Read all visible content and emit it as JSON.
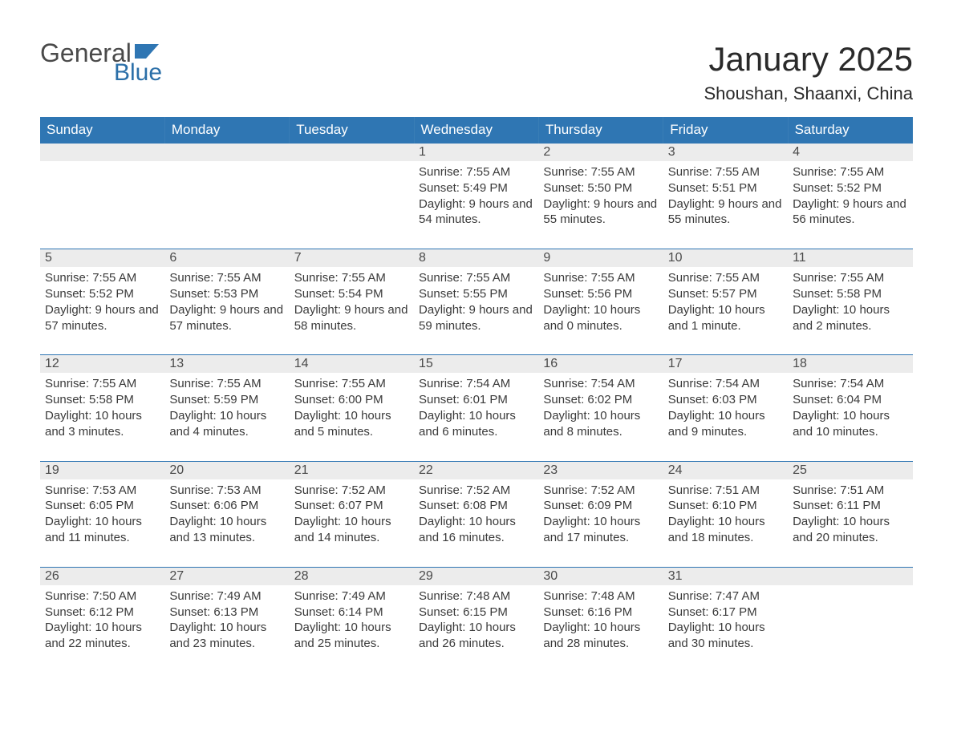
{
  "logo": {
    "line1": "General",
    "line2": "Blue",
    "icon_color": "#2f76b3"
  },
  "title": "January 2025",
  "location": "Shoushan, Shaanxi, China",
  "colors": {
    "header_bg": "#2f76b3",
    "header_text": "#ffffff",
    "daynum_bg": "#ececec",
    "body_text": "#3a3a3a",
    "border": "#2f76b3",
    "page_bg": "#ffffff"
  },
  "weekdays": [
    "Sunday",
    "Monday",
    "Tuesday",
    "Wednesday",
    "Thursday",
    "Friday",
    "Saturday"
  ],
  "weeks": [
    [
      null,
      null,
      null,
      {
        "n": "1",
        "sunrise": "7:55 AM",
        "sunset": "5:49 PM",
        "daylight": "9 hours and 54 minutes."
      },
      {
        "n": "2",
        "sunrise": "7:55 AM",
        "sunset": "5:50 PM",
        "daylight": "9 hours and 55 minutes."
      },
      {
        "n": "3",
        "sunrise": "7:55 AM",
        "sunset": "5:51 PM",
        "daylight": "9 hours and 55 minutes."
      },
      {
        "n": "4",
        "sunrise": "7:55 AM",
        "sunset": "5:52 PM",
        "daylight": "9 hours and 56 minutes."
      }
    ],
    [
      {
        "n": "5",
        "sunrise": "7:55 AM",
        "sunset": "5:52 PM",
        "daylight": "9 hours and 57 minutes."
      },
      {
        "n": "6",
        "sunrise": "7:55 AM",
        "sunset": "5:53 PM",
        "daylight": "9 hours and 57 minutes."
      },
      {
        "n": "7",
        "sunrise": "7:55 AM",
        "sunset": "5:54 PM",
        "daylight": "9 hours and 58 minutes."
      },
      {
        "n": "8",
        "sunrise": "7:55 AM",
        "sunset": "5:55 PM",
        "daylight": "9 hours and 59 minutes."
      },
      {
        "n": "9",
        "sunrise": "7:55 AM",
        "sunset": "5:56 PM",
        "daylight": "10 hours and 0 minutes."
      },
      {
        "n": "10",
        "sunrise": "7:55 AM",
        "sunset": "5:57 PM",
        "daylight": "10 hours and 1 minute."
      },
      {
        "n": "11",
        "sunrise": "7:55 AM",
        "sunset": "5:58 PM",
        "daylight": "10 hours and 2 minutes."
      }
    ],
    [
      {
        "n": "12",
        "sunrise": "7:55 AM",
        "sunset": "5:58 PM",
        "daylight": "10 hours and 3 minutes."
      },
      {
        "n": "13",
        "sunrise": "7:55 AM",
        "sunset": "5:59 PM",
        "daylight": "10 hours and 4 minutes."
      },
      {
        "n": "14",
        "sunrise": "7:55 AM",
        "sunset": "6:00 PM",
        "daylight": "10 hours and 5 minutes."
      },
      {
        "n": "15",
        "sunrise": "7:54 AM",
        "sunset": "6:01 PM",
        "daylight": "10 hours and 6 minutes."
      },
      {
        "n": "16",
        "sunrise": "7:54 AM",
        "sunset": "6:02 PM",
        "daylight": "10 hours and 8 minutes."
      },
      {
        "n": "17",
        "sunrise": "7:54 AM",
        "sunset": "6:03 PM",
        "daylight": "10 hours and 9 minutes."
      },
      {
        "n": "18",
        "sunrise": "7:54 AM",
        "sunset": "6:04 PM",
        "daylight": "10 hours and 10 minutes."
      }
    ],
    [
      {
        "n": "19",
        "sunrise": "7:53 AM",
        "sunset": "6:05 PM",
        "daylight": "10 hours and 11 minutes."
      },
      {
        "n": "20",
        "sunrise": "7:53 AM",
        "sunset": "6:06 PM",
        "daylight": "10 hours and 13 minutes."
      },
      {
        "n": "21",
        "sunrise": "7:52 AM",
        "sunset": "6:07 PM",
        "daylight": "10 hours and 14 minutes."
      },
      {
        "n": "22",
        "sunrise": "7:52 AM",
        "sunset": "6:08 PM",
        "daylight": "10 hours and 16 minutes."
      },
      {
        "n": "23",
        "sunrise": "7:52 AM",
        "sunset": "6:09 PM",
        "daylight": "10 hours and 17 minutes."
      },
      {
        "n": "24",
        "sunrise": "7:51 AM",
        "sunset": "6:10 PM",
        "daylight": "10 hours and 18 minutes."
      },
      {
        "n": "25",
        "sunrise": "7:51 AM",
        "sunset": "6:11 PM",
        "daylight": "10 hours and 20 minutes."
      }
    ],
    [
      {
        "n": "26",
        "sunrise": "7:50 AM",
        "sunset": "6:12 PM",
        "daylight": "10 hours and 22 minutes."
      },
      {
        "n": "27",
        "sunrise": "7:49 AM",
        "sunset": "6:13 PM",
        "daylight": "10 hours and 23 minutes."
      },
      {
        "n": "28",
        "sunrise": "7:49 AM",
        "sunset": "6:14 PM",
        "daylight": "10 hours and 25 minutes."
      },
      {
        "n": "29",
        "sunrise": "7:48 AM",
        "sunset": "6:15 PM",
        "daylight": "10 hours and 26 minutes."
      },
      {
        "n": "30",
        "sunrise": "7:48 AM",
        "sunset": "6:16 PM",
        "daylight": "10 hours and 28 minutes."
      },
      {
        "n": "31",
        "sunrise": "7:47 AM",
        "sunset": "6:17 PM",
        "daylight": "10 hours and 30 minutes."
      },
      null
    ]
  ],
  "labels": {
    "sunrise": "Sunrise:",
    "sunset": "Sunset:",
    "daylight": "Daylight:"
  }
}
